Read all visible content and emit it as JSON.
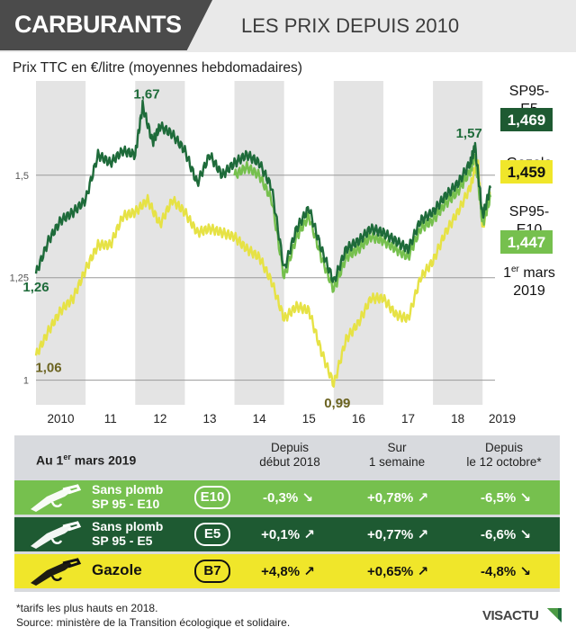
{
  "header": {
    "title": "CARBURANTS",
    "subtitle": "LES PRIX DEPUIS 2010"
  },
  "chart_data": {
    "type": "line",
    "title": "",
    "ylabel": "Prix TTC en €/litre (moyennes hebdomadaires)",
    "xlabel": "",
    "x_tick_labels": [
      "2010",
      "11",
      "12",
      "13",
      "14",
      "15",
      "16",
      "17",
      "18",
      "2019"
    ],
    "y_ticks": [
      1,
      1.25,
      1.5
    ],
    "y_tick_labels": [
      "1",
      "1,25",
      "1,5"
    ],
    "ylim": [
      0.94,
      1.73
    ],
    "xlim": [
      2010.0,
      2019.25
    ],
    "grid": "horizontal",
    "shaded_years": [
      "2010",
      "2012",
      "2014",
      "2016",
      "2018"
    ],
    "annotations": [
      {
        "text": "1,67",
        "series": "SP95-E5",
        "x": 2012.05,
        "y": 1.67
      },
      {
        "text": "1,26",
        "series": "SP95-E5",
        "x": 2010.0,
        "y": 1.26
      },
      {
        "text": "1,06",
        "series": "Gazole",
        "x": 2010.0,
        "y": 1.06
      },
      {
        "text": "0,99",
        "series": "Gazole",
        "x": 2016.0,
        "y": 0.99
      },
      {
        "text": "1,57",
        "series": "SP95-E5",
        "x": 2018.8,
        "y": 1.57
      }
    ],
    "end_date_label": "1er mars 2019",
    "series": [
      {
        "name": "SP95-E5",
        "end_label": "1,469",
        "color": "#1e6b3a",
        "x": [
          2010.0,
          2010.25,
          2010.5,
          2010.75,
          2011.0,
          2011.25,
          2011.5,
          2011.75,
          2012.0,
          2012.15,
          2012.35,
          2012.5,
          2012.75,
          2013.0,
          2013.25,
          2013.5,
          2013.75,
          2014.0,
          2014.25,
          2014.5,
          2014.75,
          2015.0,
          2015.25,
          2015.5,
          2015.75,
          2016.0,
          2016.25,
          2016.5,
          2016.75,
          2017.0,
          2017.25,
          2017.5,
          2017.75,
          2018.0,
          2018.25,
          2018.5,
          2018.75,
          2018.85,
          2019.0,
          2019.16
        ],
        "y": [
          1.26,
          1.34,
          1.39,
          1.41,
          1.44,
          1.55,
          1.53,
          1.56,
          1.55,
          1.67,
          1.58,
          1.62,
          1.6,
          1.56,
          1.48,
          1.55,
          1.5,
          1.53,
          1.55,
          1.53,
          1.47,
          1.27,
          1.37,
          1.42,
          1.32,
          1.24,
          1.32,
          1.34,
          1.37,
          1.36,
          1.34,
          1.32,
          1.39,
          1.41,
          1.45,
          1.48,
          1.53,
          1.57,
          1.4,
          1.469
        ]
      },
      {
        "name": "SP95-E10",
        "end_label": "1,447",
        "color": "#76c04e",
        "x": [
          2014.0,
          2014.25,
          2014.5,
          2014.75,
          2015.0,
          2015.25,
          2015.5,
          2015.75,
          2016.0,
          2016.25,
          2016.5,
          2016.75,
          2017.0,
          2017.25,
          2017.5,
          2017.75,
          2018.0,
          2018.25,
          2018.5,
          2018.75,
          2018.85,
          2019.0,
          2019.16
        ],
        "y": [
          1.5,
          1.52,
          1.5,
          1.44,
          1.25,
          1.35,
          1.4,
          1.3,
          1.22,
          1.3,
          1.32,
          1.35,
          1.34,
          1.32,
          1.3,
          1.37,
          1.39,
          1.43,
          1.46,
          1.51,
          1.55,
          1.38,
          1.447
        ]
      },
      {
        "name": "Gazole",
        "end_label": "1,459",
        "color": "#e6e245",
        "x": [
          2010.0,
          2010.25,
          2010.5,
          2010.75,
          2011.0,
          2011.25,
          2011.5,
          2011.75,
          2012.0,
          2012.25,
          2012.5,
          2012.75,
          2013.0,
          2013.25,
          2013.5,
          2013.75,
          2014.0,
          2014.25,
          2014.5,
          2014.75,
          2015.0,
          2015.25,
          2015.5,
          2015.75,
          2016.0,
          2016.25,
          2016.5,
          2016.75,
          2017.0,
          2017.25,
          2017.5,
          2017.75,
          2018.0,
          2018.25,
          2018.5,
          2018.75,
          2018.9,
          2019.0,
          2019.16
        ],
        "y": [
          1.06,
          1.12,
          1.17,
          1.2,
          1.27,
          1.33,
          1.33,
          1.4,
          1.41,
          1.44,
          1.38,
          1.44,
          1.41,
          1.36,
          1.37,
          1.36,
          1.35,
          1.32,
          1.3,
          1.24,
          1.15,
          1.18,
          1.17,
          1.07,
          0.99,
          1.1,
          1.14,
          1.2,
          1.2,
          1.16,
          1.15,
          1.25,
          1.29,
          1.36,
          1.41,
          1.47,
          1.54,
          1.37,
          1.459
        ]
      }
    ]
  },
  "table": {
    "date_label_prefix": "Au 1",
    "date_label_sup": "er",
    "date_label_suffix": " mars 2019",
    "col1_line1": "Depuis",
    "col1_line2": "début 2018",
    "col2_line1": "Sur",
    "col2_line2": "1 semaine",
    "col3_line1": "Depuis",
    "col3_line2": "le 12 octobre*",
    "rows": [
      {
        "name_line1": "Sans plomb",
        "name_line2": "SP 95 - E10",
        "code": "E10",
        "v1": "-0,3%",
        "v1_dir": "down",
        "v2": "+0,78%",
        "v2_dir": "up",
        "v3": "-6,5%",
        "v3_dir": "down",
        "bg": "#76c04e",
        "fg": "#ffffff"
      },
      {
        "name_line1": "Sans plomb",
        "name_line2": "SP 95 - E5",
        "code": "E5",
        "v1": "+0,1%",
        "v1_dir": "up",
        "v2": "+0,77%",
        "v2_dir": "up",
        "v3": "-6,6%",
        "v3_dir": "down",
        "bg": "#1e5a32",
        "fg": "#ffffff"
      },
      {
        "name_line1": "Gazole",
        "name_line2": "",
        "code": "B7",
        "v1": "+4,8%",
        "v1_dir": "up",
        "v2": "+0,65%",
        "v2_dir": "up",
        "v3": "-4,8%",
        "v3_dir": "down",
        "bg": "#f0e62a",
        "fg": "#111111"
      }
    ]
  },
  "footer": {
    "note": "*tarifs les plus hauts en 2018.",
    "source": "Source: ministère de la Transition écologique et solidaire."
  },
  "logo": {
    "part1": "VIS",
    "part2": "ACTU"
  }
}
